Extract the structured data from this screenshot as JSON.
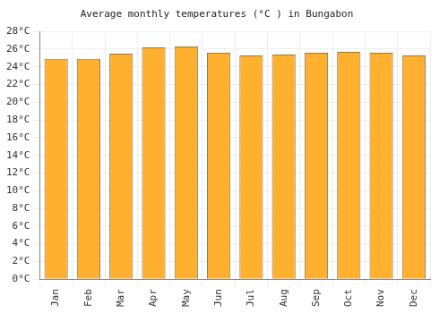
{
  "chart_data": {
    "type": "bar",
    "title": "Average monthly temperatures (°C ) in Bungabon",
    "categories": [
      "Jan",
      "Feb",
      "Mar",
      "Apr",
      "May",
      "Jun",
      "Jul",
      "Aug",
      "Sep",
      "Oct",
      "Nov",
      "Dec"
    ],
    "values": [
      24.9,
      24.9,
      25.5,
      26.2,
      26.3,
      25.6,
      25.3,
      25.4,
      25.6,
      25.7,
      25.6,
      25.3
    ],
    "color": "#ffb02e",
    "ylim": [
      0,
      28
    ],
    "yticks": [
      {
        "value": 0,
        "label": "0°C"
      },
      {
        "value": 2,
        "label": "2°C"
      },
      {
        "value": 4,
        "label": "4°C"
      },
      {
        "value": 6,
        "label": "6°C"
      },
      {
        "value": 8,
        "label": "8°C"
      },
      {
        "value": 10,
        "label": "10°C"
      },
      {
        "value": 12,
        "label": "12°C"
      },
      {
        "value": 14,
        "label": "14°C"
      },
      {
        "value": 16,
        "label": "16°C"
      },
      {
        "value": 18,
        "label": "18°C"
      },
      {
        "value": 20,
        "label": "20°C"
      },
      {
        "value": 22,
        "label": "22°C"
      },
      {
        "value": 24,
        "label": "24°C"
      },
      {
        "value": 26,
        "label": "26°C"
      },
      {
        "value": 28,
        "label": "28°C"
      }
    ],
    "grid": true
  }
}
